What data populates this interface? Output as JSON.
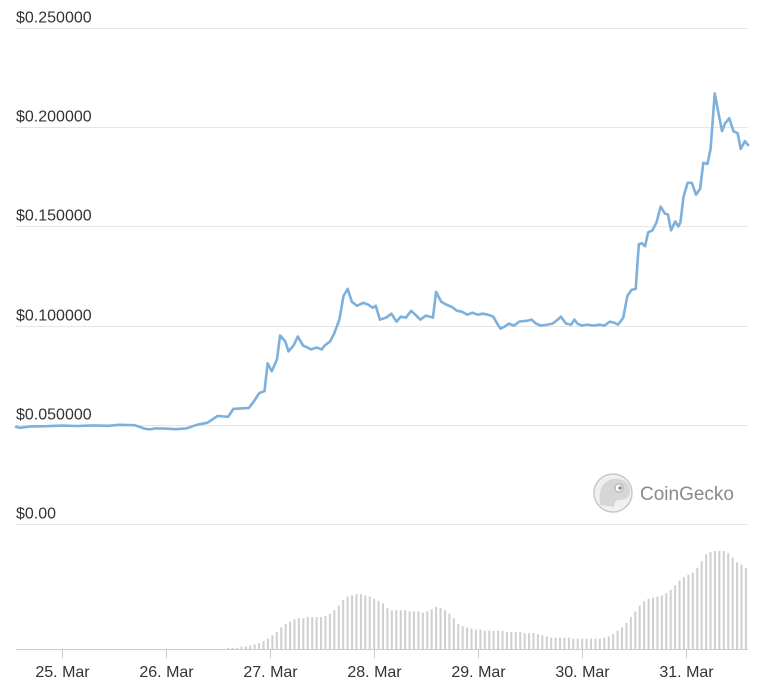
{
  "chart_data": {
    "type": "line",
    "title": "",
    "xlabel": "",
    "ylabel": "",
    "ylim": [
      0,
      0.25
    ],
    "y_ticks": [
      "$0.00",
      "$0.050000",
      "$0.100000",
      "$0.150000",
      "$0.200000",
      "$0.250000"
    ],
    "y_tick_values": [
      0,
      0.05,
      0.1,
      0.15,
      0.2,
      0.25
    ],
    "x_ticks": [
      "25. Mar",
      "26. Mar",
      "27. Mar",
      "28. Mar",
      "29. Mar",
      "30. Mar",
      "31. Mar"
    ],
    "x_tick_values": [
      25,
      26,
      27,
      28,
      29,
      30,
      31
    ],
    "xlim": [
      24.56,
      31.6
    ],
    "grid": true,
    "series": [
      {
        "values": [
          [
            24.56,
            0.049
          ],
          [
            24.6,
            0.0485
          ],
          [
            24.7,
            0.0492
          ],
          [
            24.85,
            0.0493
          ],
          [
            25.0,
            0.0496
          ],
          [
            25.15,
            0.0494
          ],
          [
            25.3,
            0.0497
          ],
          [
            25.45,
            0.0495
          ],
          [
            25.55,
            0.05
          ],
          [
            25.7,
            0.0498
          ],
          [
            25.8,
            0.048
          ],
          [
            25.85,
            0.0477
          ],
          [
            25.9,
            0.0482
          ],
          [
            26.0,
            0.0481
          ],
          [
            26.1,
            0.0478
          ],
          [
            26.2,
            0.0482
          ],
          [
            26.3,
            0.05
          ],
          [
            26.4,
            0.051
          ],
          [
            26.5,
            0.0545
          ],
          [
            26.6,
            0.054
          ],
          [
            26.65,
            0.058
          ],
          [
            26.8,
            0.0585
          ],
          [
            26.85,
            0.062
          ],
          [
            26.9,
            0.066
          ],
          [
            26.95,
            0.067
          ],
          [
            26.98,
            0.081
          ],
          [
            27.02,
            0.077
          ],
          [
            27.07,
            0.083
          ],
          [
            27.1,
            0.095
          ],
          [
            27.15,
            0.092
          ],
          [
            27.18,
            0.087
          ],
          [
            27.23,
            0.09
          ],
          [
            27.27,
            0.0945
          ],
          [
            27.32,
            0.09
          ],
          [
            27.4,
            0.088
          ],
          [
            27.45,
            0.089
          ],
          [
            27.5,
            0.088
          ],
          [
            27.53,
            0.09
          ],
          [
            27.58,
            0.092
          ],
          [
            27.62,
            0.096
          ],
          [
            27.67,
            0.103
          ],
          [
            27.71,
            0.115
          ],
          [
            27.75,
            0.1185
          ],
          [
            27.79,
            0.112
          ],
          [
            27.84,
            0.11
          ],
          [
            27.9,
            0.1115
          ],
          [
            27.95,
            0.1105
          ],
          [
            27.99,
            0.109
          ],
          [
            28.02,
            0.11
          ],
          [
            28.06,
            0.103
          ],
          [
            28.12,
            0.104
          ],
          [
            28.17,
            0.106
          ],
          [
            28.22,
            0.102
          ],
          [
            28.26,
            0.1045
          ],
          [
            28.31,
            0.104
          ],
          [
            28.36,
            0.1075
          ],
          [
            28.41,
            0.105
          ],
          [
            28.45,
            0.103
          ],
          [
            28.5,
            0.105
          ],
          [
            28.54,
            0.1045
          ],
          [
            28.57,
            0.104
          ],
          [
            28.6,
            0.117
          ],
          [
            28.65,
            0.112
          ],
          [
            28.7,
            0.1105
          ],
          [
            28.75,
            0.1095
          ],
          [
            28.8,
            0.1075
          ],
          [
            28.85,
            0.107
          ],
          [
            28.9,
            0.1055
          ],
          [
            28.95,
            0.1065
          ],
          [
            29.0,
            0.1055
          ],
          [
            29.05,
            0.106
          ],
          [
            29.1,
            0.1055
          ],
          [
            29.15,
            0.1045
          ],
          [
            29.2,
            0.1
          ],
          [
            29.22,
            0.0985
          ],
          [
            29.26,
            0.0995
          ],
          [
            29.3,
            0.101
          ],
          [
            29.35,
            0.1
          ],
          [
            29.4,
            0.102
          ],
          [
            29.48,
            0.1025
          ],
          [
            29.52,
            0.103
          ],
          [
            29.56,
            0.101
          ],
          [
            29.61,
            0.1
          ],
          [
            29.67,
            0.1005
          ],
          [
            29.72,
            0.101
          ],
          [
            29.77,
            0.103
          ],
          [
            29.8,
            0.1045
          ],
          [
            29.85,
            0.101
          ],
          [
            29.9,
            0.1005
          ],
          [
            29.93,
            0.103
          ],
          [
            29.96,
            0.101
          ],
          [
            30.0,
            0.1
          ],
          [
            30.05,
            0.1005
          ],
          [
            30.12,
            0.1
          ],
          [
            30.17,
            0.1005
          ],
          [
            30.22,
            0.1
          ],
          [
            30.27,
            0.102
          ],
          [
            30.31,
            0.1015
          ],
          [
            30.35,
            0.1005
          ],
          [
            30.4,
            0.104
          ],
          [
            30.44,
            0.115
          ],
          [
            30.48,
            0.118
          ],
          [
            30.52,
            0.1185
          ],
          [
            30.55,
            0.141
          ],
          [
            30.58,
            0.1415
          ],
          [
            30.61,
            0.14
          ],
          [
            30.64,
            0.147
          ],
          [
            30.68,
            0.148
          ],
          [
            30.72,
            0.152
          ],
          [
            30.76,
            0.16
          ],
          [
            30.8,
            0.1565
          ],
          [
            30.83,
            0.156
          ],
          [
            30.86,
            0.148
          ],
          [
            30.9,
            0.1525
          ],
          [
            30.93,
            0.15
          ],
          [
            30.95,
            0.152
          ],
          [
            30.98,
            0.165
          ],
          [
            31.02,
            0.172
          ],
          [
            31.06,
            0.172
          ],
          [
            31.1,
            0.166
          ],
          [
            31.14,
            0.169
          ],
          [
            31.17,
            0.182
          ],
          [
            31.21,
            0.1815
          ],
          [
            31.24,
            0.189
          ],
          [
            31.28,
            0.217
          ],
          [
            31.32,
            0.206
          ],
          [
            31.35,
            0.198
          ],
          [
            31.38,
            0.202
          ],
          [
            31.42,
            0.2045
          ],
          [
            31.46,
            0.198
          ],
          [
            31.5,
            0.197
          ],
          [
            31.53,
            0.189
          ],
          [
            31.57,
            0.193
          ],
          [
            31.6,
            0.191
          ]
        ],
        "color": "#7eb0dc"
      }
    ],
    "volume_bars": {
      "color": "#cfcfcf",
      "x_range": [
        26.6,
        31.58
      ],
      "values": [
        0.01,
        0.01,
        0.01,
        0.02,
        0.02,
        0.03,
        0.04,
        0.05,
        0.07,
        0.09,
        0.12,
        0.15,
        0.19,
        0.22,
        0.24,
        0.26,
        0.27,
        0.27,
        0.28,
        0.28,
        0.28,
        0.28,
        0.29,
        0.31,
        0.34,
        0.38,
        0.43,
        0.46,
        0.47,
        0.48,
        0.48,
        0.47,
        0.46,
        0.44,
        0.42,
        0.4,
        0.36,
        0.34,
        0.34,
        0.34,
        0.34,
        0.33,
        0.33,
        0.33,
        0.32,
        0.33,
        0.35,
        0.37,
        0.36,
        0.34,
        0.31,
        0.27,
        0.22,
        0.2,
        0.19,
        0.18,
        0.17,
        0.17,
        0.16,
        0.16,
        0.16,
        0.16,
        0.16,
        0.15,
        0.15,
        0.15,
        0.15,
        0.14,
        0.14,
        0.14,
        0.13,
        0.12,
        0.11,
        0.1,
        0.1,
        0.1,
        0.1,
        0.1,
        0.09,
        0.09,
        0.09,
        0.09,
        0.09,
        0.09,
        0.09,
        0.1,
        0.11,
        0.13,
        0.16,
        0.19,
        0.23,
        0.28,
        0.33,
        0.38,
        0.42,
        0.44,
        0.45,
        0.46,
        0.47,
        0.49,
        0.52,
        0.56,
        0.6,
        0.63,
        0.65,
        0.67,
        0.71,
        0.77,
        0.83,
        0.85,
        0.86,
        0.86,
        0.86,
        0.84,
        0.8,
        0.76,
        0.74,
        0.71
      ]
    }
  },
  "watermark": {
    "text": "CoinGecko",
    "icon": "gecko-logo-icon"
  }
}
